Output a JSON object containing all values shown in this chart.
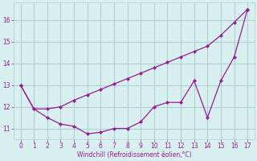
{
  "x": [
    0,
    1,
    2,
    3,
    4,
    5,
    6,
    7,
    8,
    9,
    10,
    11,
    12,
    13,
    14,
    15,
    16,
    17
  ],
  "y_lower": [
    13.0,
    11.9,
    11.5,
    11.2,
    11.1,
    10.75,
    10.82,
    11.0,
    11.0,
    11.3,
    12.0,
    12.2,
    12.2,
    13.2,
    11.5,
    13.2,
    14.3,
    16.5
  ],
  "y_upper": [
    13.0,
    11.9,
    11.9,
    12.0,
    12.3,
    12.55,
    12.8,
    13.05,
    13.3,
    13.55,
    13.8,
    14.05,
    14.3,
    14.55,
    14.8,
    15.3,
    15.9,
    16.5
  ],
  "line_color": "#9b1a9b",
  "bg_color": "#d8f0f0",
  "grid_color": "#b0d0d0",
  "xlabel": "Windchill (Refroidissement éolien,°C)",
  "ylim": [
    10.5,
    16.8
  ],
  "xlim": [
    -0.5,
    17.5
  ],
  "yticks": [
    11,
    12,
    13,
    14,
    15,
    16
  ],
  "xticks": [
    0,
    1,
    2,
    3,
    4,
    5,
    6,
    7,
    8,
    9,
    10,
    11,
    12,
    13,
    14,
    15,
    16,
    17
  ]
}
